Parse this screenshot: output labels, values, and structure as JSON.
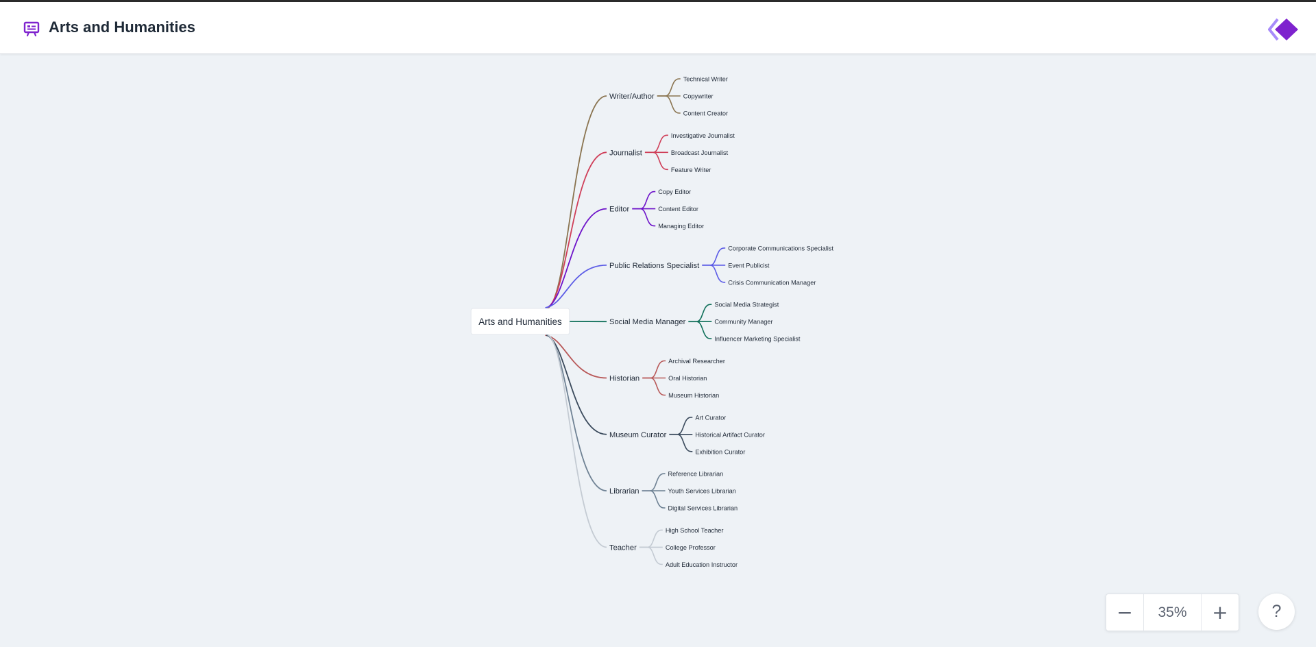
{
  "header": {
    "title": "Arts and Humanities",
    "icon": "presentation-board-icon",
    "logo": "diamond-logo"
  },
  "colors": {
    "accent": "#7e22ce",
    "canvas": "#eef2f6",
    "branches": [
      "#8a7450",
      "#cf3e58",
      "#6d12c9",
      "#5b5be6",
      "#10705a",
      "#b85858",
      "#3a4a5c",
      "#6f8294",
      "#c4cbd3"
    ]
  },
  "mindmap": {
    "root": "Arts and Humanities",
    "branches": [
      {
        "label": "Writer/Author",
        "children": [
          "Technical Writer",
          "Copywriter",
          "Content Creator"
        ]
      },
      {
        "label": "Journalist",
        "children": [
          "Investigative Journalist",
          "Broadcast Journalist",
          "Feature Writer"
        ]
      },
      {
        "label": "Editor",
        "children": [
          "Copy Editor",
          "Content Editor",
          "Managing Editor"
        ]
      },
      {
        "label": "Public Relations Specialist",
        "children": [
          "Corporate Communications Specialist",
          "Event Publicist",
          "Crisis Communication Manager"
        ]
      },
      {
        "label": "Social Media Manager",
        "children": [
          "Social Media Strategist",
          "Community Manager",
          "Influencer Marketing Specialist"
        ]
      },
      {
        "label": "Historian",
        "children": [
          "Archival Researcher",
          "Oral Historian",
          "Museum Historian"
        ]
      },
      {
        "label": "Museum Curator",
        "children": [
          "Art Curator",
          "Historical Artifact Curator",
          "Exhibition Curator"
        ]
      },
      {
        "label": "Librarian",
        "children": [
          "Reference Librarian",
          "Youth Services Librarian",
          "Digital Services Librarian"
        ]
      },
      {
        "label": "Teacher",
        "children": [
          "High School Teacher",
          "College Professor",
          "Adult Education Instructor"
        ]
      }
    ]
  },
  "zoom": {
    "minus_label": "−",
    "level": "35%",
    "plus_label": "+"
  },
  "help": {
    "label": "?"
  }
}
